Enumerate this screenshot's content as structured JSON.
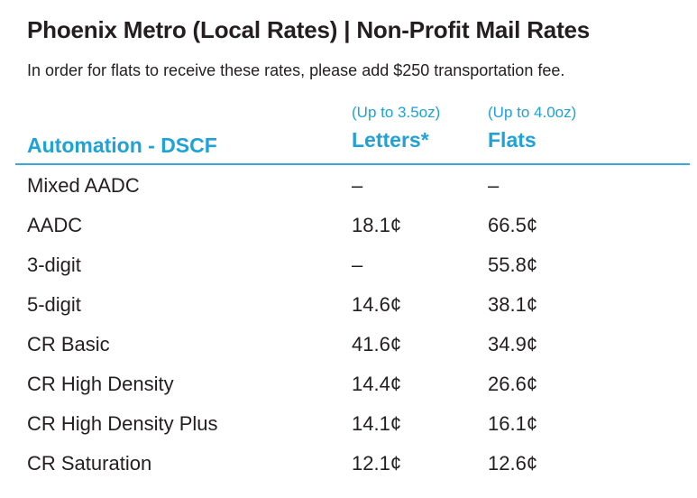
{
  "title": "Phoenix Metro (Local Rates) | Non-Profit Mail Rates",
  "subtitle": "In order for flats to receive these rates, please add $250 transportation fee.",
  "table": {
    "section_label": "Automation - DSCF",
    "columns": [
      {
        "note": "(Up to 3.5oz)",
        "label": "Letters*"
      },
      {
        "note": "(Up to 4.0oz)",
        "label": "Flats"
      }
    ],
    "rows": [
      {
        "name": "Mixed AADC",
        "letters": "–",
        "flats": "–"
      },
      {
        "name": "AADC",
        "letters": "18.1¢",
        "flats": "66.5¢"
      },
      {
        "name": "3-digit",
        "letters": "–",
        "flats": "55.8¢"
      },
      {
        "name": "5-digit",
        "letters": "14.6¢",
        "flats": "38.1¢"
      },
      {
        "name": "CR Basic",
        "letters": "41.6¢",
        "flats": "34.9¢"
      },
      {
        "name": "CR High Density",
        "letters": "14.4¢",
        "flats": "26.6¢"
      },
      {
        "name": "CR High Density Plus",
        "letters": "14.1¢",
        "flats": "16.1¢"
      },
      {
        "name": "CR Saturation",
        "letters": "12.1¢",
        "flats": "12.6¢"
      }
    ]
  },
  "colors": {
    "accent": "#1ea2d8",
    "text": "#231f20",
    "rule": "#3aa8d8"
  }
}
